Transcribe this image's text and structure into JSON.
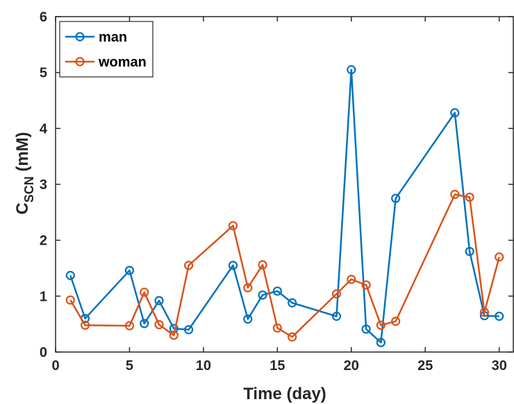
{
  "chart_data": {
    "type": "line",
    "xlabel": "Time (day)",
    "ylabel_main": "C",
    "ylabel_sub": "SCN",
    "ylabel_unit": " (mM)",
    "xlim": [
      0,
      31
    ],
    "ylim": [
      0,
      6
    ],
    "xticks": [
      "0",
      "5",
      "10",
      "15",
      "20",
      "25",
      "30"
    ],
    "yticks": [
      "0",
      "1",
      "2",
      "3",
      "4",
      "5",
      "6"
    ],
    "grid": false,
    "legend_position": "top-left",
    "series": [
      {
        "name": "man",
        "color": "#0072BD",
        "x": [
          1,
          2,
          5,
          6,
          7,
          8,
          9,
          12,
          13,
          14,
          15,
          16,
          19,
          20,
          21,
          22,
          23,
          27,
          28,
          29,
          30
        ],
        "y": [
          1.37,
          0.6,
          1.46,
          0.51,
          0.92,
          0.42,
          0.4,
          1.55,
          0.59,
          1.02,
          1.09,
          0.88,
          0.64,
          5.05,
          0.41,
          0.17,
          2.75,
          4.28,
          1.8,
          0.65,
          0.64
        ]
      },
      {
        "name": "woman",
        "color": "#D95319",
        "x": [
          1,
          2,
          5,
          6,
          7,
          8,
          9,
          12,
          13,
          14,
          15,
          16,
          19,
          20,
          21,
          22,
          23,
          27,
          28,
          29,
          30
        ],
        "y": [
          0.93,
          0.48,
          0.47,
          1.07,
          0.49,
          0.3,
          1.55,
          2.26,
          1.15,
          1.56,
          0.43,
          0.27,
          1.04,
          1.3,
          1.2,
          0.48,
          0.55,
          2.82,
          2.77,
          0.71,
          1.7
        ]
      }
    ]
  }
}
